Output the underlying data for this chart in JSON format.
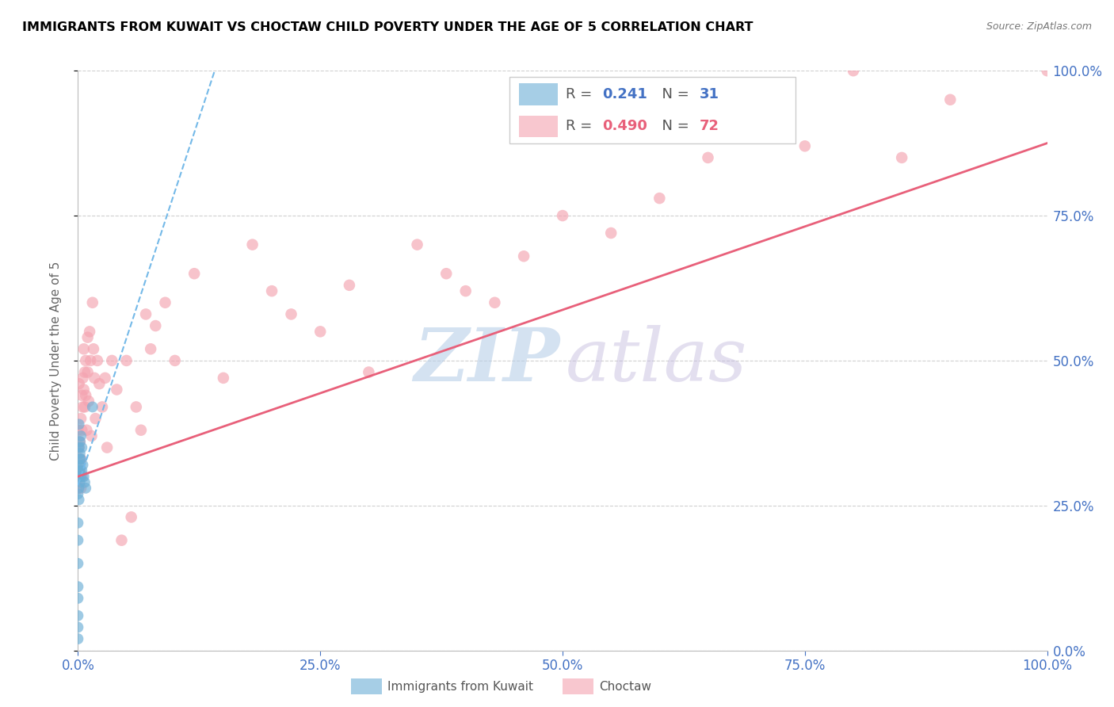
{
  "title": "IMMIGRANTS FROM KUWAIT VS CHOCTAW CHILD POVERTY UNDER THE AGE OF 5 CORRELATION CHART",
  "source": "Source: ZipAtlas.com",
  "ylabel": "Child Poverty Under the Age of 5",
  "background_color": "#ffffff",
  "blue_scatter_x": [
    0.0,
    0.0,
    0.0,
    0.0,
    0.0,
    0.0,
    0.0,
    0.0,
    0.0,
    0.0,
    0.001,
    0.001,
    0.001,
    0.001,
    0.001,
    0.001,
    0.002,
    0.002,
    0.002,
    0.002,
    0.002,
    0.003,
    0.003,
    0.003,
    0.004,
    0.004,
    0.005,
    0.006,
    0.007,
    0.008,
    0.015
  ],
  "blue_scatter_y": [
    0.02,
    0.04,
    0.06,
    0.09,
    0.11,
    0.15,
    0.19,
    0.22,
    0.27,
    0.31,
    0.3,
    0.28,
    0.26,
    0.32,
    0.35,
    0.39,
    0.29,
    0.31,
    0.33,
    0.36,
    0.34,
    0.3,
    0.33,
    0.37,
    0.31,
    0.35,
    0.32,
    0.3,
    0.29,
    0.28,
    0.42
  ],
  "pink_scatter_x": [
    0.0,
    0.0,
    0.001,
    0.001,
    0.001,
    0.002,
    0.002,
    0.003,
    0.003,
    0.003,
    0.004,
    0.004,
    0.004,
    0.005,
    0.005,
    0.006,
    0.006,
    0.007,
    0.007,
    0.008,
    0.008,
    0.009,
    0.01,
    0.01,
    0.011,
    0.012,
    0.013,
    0.014,
    0.015,
    0.016,
    0.017,
    0.018,
    0.02,
    0.022,
    0.025,
    0.028,
    0.03,
    0.035,
    0.04,
    0.045,
    0.05,
    0.055,
    0.06,
    0.065,
    0.07,
    0.075,
    0.08,
    0.09,
    0.1,
    0.12,
    0.15,
    0.18,
    0.2,
    0.22,
    0.25,
    0.28,
    0.3,
    0.35,
    0.38,
    0.4,
    0.43,
    0.46,
    0.5,
    0.55,
    0.6,
    0.65,
    0.7,
    0.75,
    0.8,
    0.85,
    0.9,
    1.0
  ],
  "pink_scatter_y": [
    0.28,
    0.38,
    0.35,
    0.3,
    0.46,
    0.31,
    0.36,
    0.33,
    0.4,
    0.28,
    0.44,
    0.38,
    0.3,
    0.47,
    0.42,
    0.52,
    0.45,
    0.48,
    0.42,
    0.5,
    0.44,
    0.38,
    0.54,
    0.48,
    0.43,
    0.55,
    0.5,
    0.37,
    0.6,
    0.52,
    0.47,
    0.4,
    0.5,
    0.46,
    0.42,
    0.47,
    0.35,
    0.5,
    0.45,
    0.19,
    0.5,
    0.23,
    0.42,
    0.38,
    0.58,
    0.52,
    0.56,
    0.6,
    0.5,
    0.65,
    0.47,
    0.7,
    0.62,
    0.58,
    0.55,
    0.63,
    0.48,
    0.7,
    0.65,
    0.62,
    0.6,
    0.68,
    0.75,
    0.72,
    0.78,
    0.85,
    0.89,
    0.87,
    1.0,
    0.85,
    0.95,
    1.0
  ],
  "blue_line_x": [
    0.0,
    0.145
  ],
  "blue_line_y": [
    0.285,
    1.02
  ],
  "pink_line_x": [
    0.0,
    1.0
  ],
  "pink_line_y": [
    0.3,
    0.875
  ],
  "ytick_positions": [
    0.0,
    0.25,
    0.5,
    0.75,
    1.0
  ],
  "ytick_labels": [
    "0.0%",
    "25.0%",
    "50.0%",
    "75.0%",
    "100.0%"
  ],
  "xtick_positions": [
    0.0,
    0.25,
    0.5,
    0.75,
    1.0
  ],
  "xtick_labels": [
    "0.0%",
    "25.0%",
    "50.0%",
    "75.0%",
    "100.0%"
  ],
  "blue_color": "#6baed6",
  "pink_color": "#f4a3b0",
  "blue_line_color": "#74b9e8",
  "pink_line_color": "#e8607a",
  "axis_color": "#4472c4",
  "grid_color": "#d0d0d0",
  "title_color": "#000000",
  "legend_r_color_blue": "#4472c4",
  "legend_n_color_blue": "#4472c4",
  "legend_r_color_pink": "#e8607a",
  "legend_n_color_pink": "#e8607a"
}
